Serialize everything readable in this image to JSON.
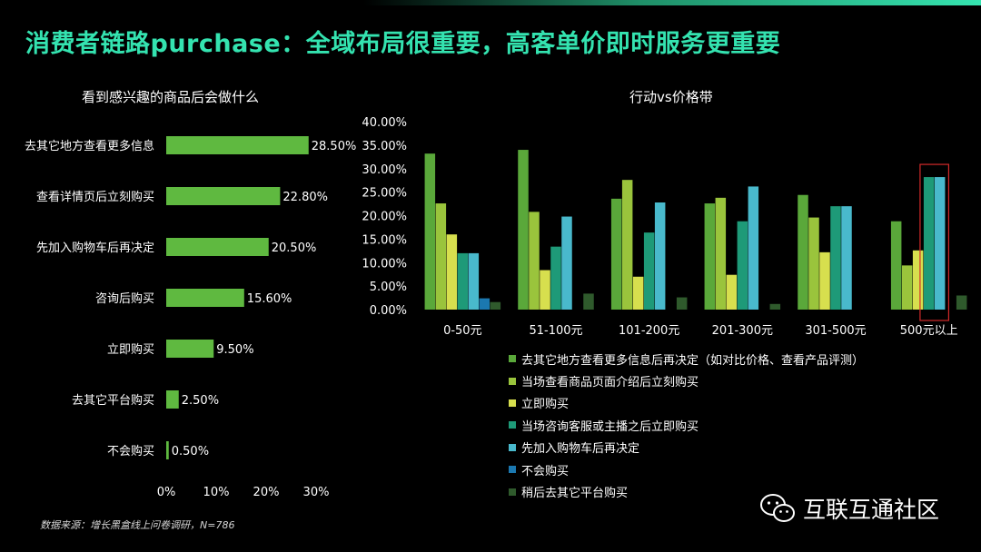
{
  "page": {
    "title": "消费者链路purchase：全域布局很重要，高客单价即时服务更重要",
    "source": "数据来源：增长黑盒线上问卷调研，N=786",
    "watermark": "互联互通社区"
  },
  "chart_data": [
    {
      "type": "bar",
      "orientation": "horizontal",
      "title": "看到感兴趣的商品后会做什么",
      "categories": [
        "去其它地方查看更多信息",
        "查看详情页后立刻购买",
        "先加入购物车后再决定",
        "咨询后购买",
        "立即购买",
        "去其它平台购买",
        "不会购买"
      ],
      "values": [
        28.5,
        22.8,
        20.5,
        15.6,
        9.5,
        2.5,
        0.5
      ],
      "value_labels": [
        "28.50%",
        "22.80%",
        "20.50%",
        "15.60%",
        "9.50%",
        "2.50%",
        "0.50%"
      ],
      "xlim": [
        0,
        30
      ],
      "xticks": [
        "0%",
        "10%",
        "20%",
        "30%"
      ],
      "color": "#5fb940",
      "grid": false
    },
    {
      "type": "bar",
      "orientation": "vertical",
      "title": "行动vs价格带",
      "categories": [
        "0-50元",
        "51-100元",
        "101-200元",
        "201-300元",
        "301-500元",
        "500元以上"
      ],
      "ylim": [
        0,
        40
      ],
      "yticks": [
        "0.00%",
        "5.00%",
        "10.00%",
        "15.00%",
        "20.00%",
        "25.00%",
        "30.00%",
        "35.00%",
        "40.00%"
      ],
      "series": [
        {
          "name": "去其它地方查看更多信息后再决定（如对比价格、查看产品评测）",
          "color": "#5aa83a",
          "values": [
            33.2,
            34.0,
            23.6,
            22.6,
            24.4,
            18.8
          ]
        },
        {
          "name": "当场查看商品页面介绍后立刻购买",
          "color": "#9ac43c",
          "values": [
            22.6,
            20.8,
            27.6,
            23.8,
            19.6,
            9.4
          ]
        },
        {
          "name": "立即购买",
          "color": "#d7df4e",
          "values": [
            16.0,
            8.4,
            7.0,
            7.4,
            12.2,
            12.6
          ]
        },
        {
          "name": "当场咨询客服或主播之后立即购买",
          "color": "#1e9a78",
          "values": [
            12.0,
            13.4,
            16.4,
            18.8,
            22.0,
            28.2
          ]
        },
        {
          "name": "先加入购物车后再决定",
          "color": "#49b9cc",
          "values": [
            12.0,
            19.8,
            22.8,
            26.2,
            22.0,
            28.2
          ]
        },
        {
          "name": "不会购买",
          "color": "#1b78b0",
          "values": [
            2.4,
            0,
            0,
            0,
            0,
            0
          ]
        },
        {
          "name": "稍后去其它平台购买",
          "color": "#2f5a2c",
          "values": [
            1.6,
            3.4,
            2.6,
            1.2,
            0,
            3.0
          ]
        }
      ],
      "highlight": {
        "category": "500元以上",
        "color": "#d32a2a"
      },
      "legend_position": "bottom",
      "grid": false
    }
  ]
}
